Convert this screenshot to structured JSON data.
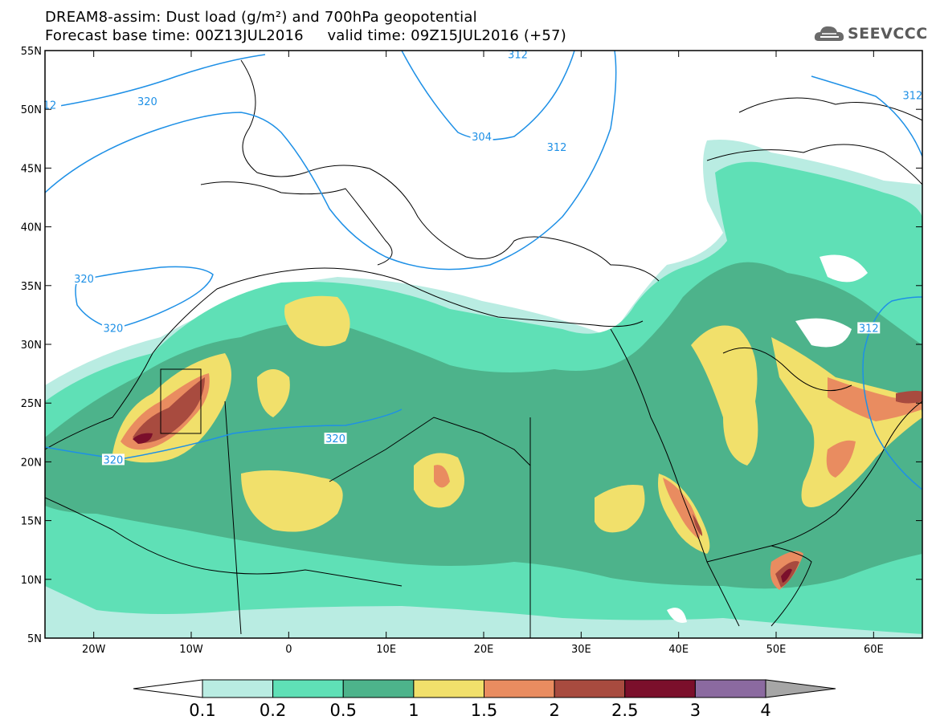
{
  "header": {
    "title_line1": "DREAM8-assim: Dust load (g/m²) and 700hPa geopotential",
    "title_line2": "Forecast base time: 00Z13JUL2016     valid time: 09Z15JUL2016 (+57)",
    "logo_text": "SEEVCCC",
    "logo_icon": "cloud-icon"
  },
  "map": {
    "lon_range": [
      -25,
      65
    ],
    "lat_range": [
      5,
      55
    ],
    "lon_labels": [
      "20W",
      "10W",
      "0",
      "10E",
      "20E",
      "30E",
      "40E",
      "50E",
      "60E"
    ],
    "lat_labels": [
      "55N",
      "50N",
      "45N",
      "40N",
      "35N",
      "30N",
      "25N",
      "20N",
      "15N",
      "10N",
      "5N"
    ],
    "contour_color": "#1e90e6",
    "contour_labels": [
      {
        "text": "312",
        "lon": 23.5,
        "lat": 54.5
      },
      {
        "text": "12",
        "lon": -24.5,
        "lat": 50.2
      },
      {
        "text": "320",
        "lon": -14.5,
        "lat": 50.5
      },
      {
        "text": "304",
        "lon": 19.8,
        "lat": 47.5
      },
      {
        "text": "312",
        "lon": 27.5,
        "lat": 46.6
      },
      {
        "text": "312",
        "lon": 64,
        "lat": 51
      },
      {
        "text": "320",
        "lon": -21,
        "lat": 35.4
      },
      {
        "text": "320",
        "lon": -18,
        "lat": 31.2
      },
      {
        "text": "320",
        "lon": 4.8,
        "lat": 21.8
      },
      {
        "text": "320",
        "lon": -18,
        "lat": 20.0
      },
      {
        "text": "312",
        "lon": 59.5,
        "lat": 31.2
      }
    ]
  },
  "colorbar": {
    "labels": [
      "0.1",
      "0.2",
      "0.5",
      "1",
      "1.5",
      "2",
      "2.5",
      "3",
      "4"
    ],
    "colors": [
      "#b9ece2",
      "#5fe0b6",
      "#4db38b",
      "#f1e06b",
      "#e98c60",
      "#a84b3f",
      "#7b0f2b",
      "#8b6aa0",
      "#a6a6a6"
    ],
    "under_color": "#ffffff",
    "over_color": "#a6a6a6"
  }
}
